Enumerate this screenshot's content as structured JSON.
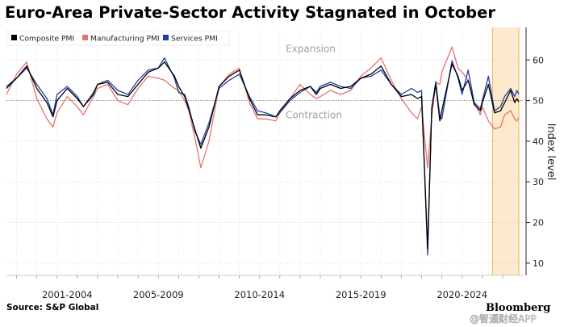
{
  "chart_data": {
    "type": "line",
    "title": "Euro-Area Private-Sector Activity Stagnated in October",
    "ylabel": "Index level",
    "ylim": [
      7,
      68
    ],
    "yticks": [
      10,
      20,
      30,
      40,
      50,
      60
    ],
    "x_range": [
      1999.5,
      2025.0
    ],
    "xtick_labels": [
      "2001-2004",
      "2005-2009",
      "2010-2014",
      "2015-2019",
      "2020-2024"
    ],
    "xtick_label_centers": [
      2002.5,
      2007.0,
      2012.0,
      2017.0,
      2022.0
    ],
    "xtick_positions": [
      2000,
      2001,
      2002,
      2003,
      2004,
      2005,
      2006,
      2007,
      2008,
      2009,
      2010,
      2011,
      2012,
      2013,
      2014,
      2015,
      2016,
      2017,
      2018,
      2019,
      2020,
      2021,
      2022,
      2023,
      2024
    ],
    "reference_line": 50,
    "annotations": [
      "Expansion",
      "Contraction"
    ],
    "shaded_region": [
      2023.5,
      2024.8
    ],
    "grid": true,
    "legend_position": "top-left",
    "source": "Source: S&P Global",
    "brand": "Bloomberg",
    "watermark": "@智通财经APP",
    "series": [
      {
        "name": "Composite PMI",
        "color": "#000000",
        "points": [
          [
            1999.5,
            53.0
          ],
          [
            2000.0,
            55.5
          ],
          [
            2000.5,
            58.5
          ],
          [
            2001.0,
            53.0
          ],
          [
            2001.5,
            49.5
          ],
          [
            2001.8,
            46.0
          ],
          [
            2002.0,
            50.0
          ],
          [
            2002.5,
            53.0
          ],
          [
            2003.0,
            50.5
          ],
          [
            2003.3,
            48.5
          ],
          [
            2003.8,
            51.5
          ],
          [
            2004.0,
            54.0
          ],
          [
            2004.5,
            54.5
          ],
          [
            2005.0,
            51.5
          ],
          [
            2005.5,
            51.0
          ],
          [
            2006.0,
            54.0
          ],
          [
            2006.5,
            57.0
          ],
          [
            2007.0,
            58.0
          ],
          [
            2007.3,
            59.5
          ],
          [
            2007.8,
            56.0
          ],
          [
            2008.0,
            53.5
          ],
          [
            2008.3,
            51.0
          ],
          [
            2008.5,
            48.0
          ],
          [
            2008.8,
            43.0
          ],
          [
            2009.1,
            38.3
          ],
          [
            2009.5,
            43.5
          ],
          [
            2010.0,
            53.5
          ],
          [
            2010.5,
            56.0
          ],
          [
            2011.0,
            57.5
          ],
          [
            2011.5,
            50.5
          ],
          [
            2011.9,
            46.5
          ],
          [
            2012.3,
            46.5
          ],
          [
            2012.8,
            46.0
          ],
          [
            2013.0,
            47.5
          ],
          [
            2013.5,
            50.5
          ],
          [
            2014.0,
            52.5
          ],
          [
            2014.5,
            53.5
          ],
          [
            2014.8,
            51.5
          ],
          [
            2015.0,
            53.0
          ],
          [
            2015.5,
            54.0
          ],
          [
            2016.0,
            53.0
          ],
          [
            2016.5,
            53.5
          ],
          [
            2017.0,
            55.5
          ],
          [
            2017.5,
            56.5
          ],
          [
            2018.0,
            58.5
          ],
          [
            2018.5,
            54.0
          ],
          [
            2019.0,
            51.0
          ],
          [
            2019.5,
            51.5
          ],
          [
            2019.8,
            50.5
          ],
          [
            2020.0,
            51.0
          ],
          [
            2020.3,
            13.6
          ],
          [
            2020.5,
            48.0
          ],
          [
            2020.7,
            54.0
          ],
          [
            2020.9,
            45.0
          ],
          [
            2021.0,
            47.5
          ],
          [
            2021.5,
            59.0
          ],
          [
            2021.8,
            56.0
          ],
          [
            2022.0,
            52.5
          ],
          [
            2022.3,
            55.0
          ],
          [
            2022.6,
            49.0
          ],
          [
            2022.9,
            47.5
          ],
          [
            2023.0,
            49.5
          ],
          [
            2023.3,
            54.0
          ],
          [
            2023.6,
            47.0
          ],
          [
            2023.9,
            47.5
          ],
          [
            2024.1,
            49.5
          ],
          [
            2024.4,
            52.5
          ],
          [
            2024.6,
            49.5
          ],
          [
            2024.7,
            50.5
          ],
          [
            2024.8,
            49.7
          ]
        ]
      },
      {
        "name": "Manufacturing PMI",
        "color": "#e8736c",
        "points": [
          [
            1999.5,
            51.5
          ],
          [
            2000.0,
            56.5
          ],
          [
            2000.5,
            59.5
          ],
          [
            2001.0,
            50.5
          ],
          [
            2001.5,
            45.5
          ],
          [
            2001.8,
            43.5
          ],
          [
            2002.0,
            47.0
          ],
          [
            2002.5,
            51.0
          ],
          [
            2003.0,
            48.5
          ],
          [
            2003.3,
            46.5
          ],
          [
            2003.8,
            51.0
          ],
          [
            2004.0,
            53.0
          ],
          [
            2004.5,
            54.0
          ],
          [
            2005.0,
            50.0
          ],
          [
            2005.5,
            49.0
          ],
          [
            2006.0,
            53.0
          ],
          [
            2006.5,
            56.0
          ],
          [
            2007.0,
            55.5
          ],
          [
            2007.3,
            55.0
          ],
          [
            2007.8,
            53.0
          ],
          [
            2008.0,
            52.5
          ],
          [
            2008.3,
            50.0
          ],
          [
            2008.5,
            47.5
          ],
          [
            2008.8,
            41.0
          ],
          [
            2009.1,
            33.5
          ],
          [
            2009.5,
            40.0
          ],
          [
            2010.0,
            53.5
          ],
          [
            2010.5,
            56.5
          ],
          [
            2011.0,
            58.0
          ],
          [
            2011.5,
            49.5
          ],
          [
            2011.9,
            45.5
          ],
          [
            2012.3,
            45.5
          ],
          [
            2012.8,
            45.0
          ],
          [
            2013.0,
            47.0
          ],
          [
            2013.5,
            50.5
          ],
          [
            2014.0,
            54.0
          ],
          [
            2014.5,
            51.5
          ],
          [
            2014.8,
            50.5
          ],
          [
            2015.0,
            51.0
          ],
          [
            2015.5,
            52.5
          ],
          [
            2016.0,
            51.5
          ],
          [
            2016.5,
            52.5
          ],
          [
            2017.0,
            56.0
          ],
          [
            2017.5,
            58.0
          ],
          [
            2018.0,
            60.5
          ],
          [
            2018.5,
            55.0
          ],
          [
            2019.0,
            50.5
          ],
          [
            2019.5,
            47.0
          ],
          [
            2019.8,
            45.5
          ],
          [
            2020.0,
            48.5
          ],
          [
            2020.3,
            33.4
          ],
          [
            2020.5,
            46.0
          ],
          [
            2020.7,
            54.5
          ],
          [
            2020.9,
            54.0
          ],
          [
            2021.0,
            57.0
          ],
          [
            2021.5,
            63.2
          ],
          [
            2021.8,
            58.0
          ],
          [
            2022.0,
            57.0
          ],
          [
            2022.3,
            55.0
          ],
          [
            2022.6,
            49.5
          ],
          [
            2022.9,
            46.5
          ],
          [
            2023.0,
            48.5
          ],
          [
            2023.3,
            45.0
          ],
          [
            2023.6,
            43.0
          ],
          [
            2023.9,
            43.5
          ],
          [
            2024.1,
            46.5
          ],
          [
            2024.4,
            47.5
          ],
          [
            2024.6,
            45.5
          ],
          [
            2024.7,
            45.0
          ],
          [
            2024.8,
            45.8
          ]
        ]
      },
      {
        "name": "Services PMI",
        "color": "#1f3fa3",
        "points": [
          [
            1999.5,
            53.5
          ],
          [
            2000.0,
            55.5
          ],
          [
            2000.5,
            58.0
          ],
          [
            2001.0,
            54.0
          ],
          [
            2001.5,
            50.5
          ],
          [
            2001.8,
            46.5
          ],
          [
            2002.0,
            51.5
          ],
          [
            2002.5,
            53.5
          ],
          [
            2003.0,
            51.0
          ],
          [
            2003.3,
            48.5
          ],
          [
            2003.8,
            52.0
          ],
          [
            2004.0,
            54.0
          ],
          [
            2004.5,
            55.0
          ],
          [
            2005.0,
            52.5
          ],
          [
            2005.5,
            51.5
          ],
          [
            2006.0,
            55.0
          ],
          [
            2006.5,
            57.5
          ],
          [
            2007.0,
            58.0
          ],
          [
            2007.3,
            60.5
          ],
          [
            2007.8,
            55.5
          ],
          [
            2008.0,
            52.0
          ],
          [
            2008.3,
            51.5
          ],
          [
            2008.5,
            48.5
          ],
          [
            2008.8,
            42.5
          ],
          [
            2009.1,
            39.2
          ],
          [
            2009.5,
            44.5
          ],
          [
            2010.0,
            53.0
          ],
          [
            2010.5,
            55.0
          ],
          [
            2011.0,
            56.5
          ],
          [
            2011.5,
            51.0
          ],
          [
            2011.9,
            47.5
          ],
          [
            2012.3,
            47.0
          ],
          [
            2012.8,
            46.0
          ],
          [
            2013.0,
            47.0
          ],
          [
            2013.5,
            50.0
          ],
          [
            2014.0,
            52.0
          ],
          [
            2014.5,
            53.5
          ],
          [
            2014.8,
            52.0
          ],
          [
            2015.0,
            53.5
          ],
          [
            2015.5,
            54.5
          ],
          [
            2016.0,
            53.5
          ],
          [
            2016.5,
            53.0
          ],
          [
            2017.0,
            55.5
          ],
          [
            2017.5,
            56.0
          ],
          [
            2018.0,
            57.5
          ],
          [
            2018.5,
            54.0
          ],
          [
            2019.0,
            51.5
          ],
          [
            2019.5,
            53.0
          ],
          [
            2019.8,
            52.0
          ],
          [
            2020.0,
            52.5
          ],
          [
            2020.3,
            12.0
          ],
          [
            2020.5,
            48.3
          ],
          [
            2020.7,
            54.7
          ],
          [
            2020.9,
            46.0
          ],
          [
            2021.0,
            45.5
          ],
          [
            2021.5,
            59.8
          ],
          [
            2021.8,
            55.5
          ],
          [
            2022.0,
            51.5
          ],
          [
            2022.3,
            57.5
          ],
          [
            2022.6,
            49.5
          ],
          [
            2022.9,
            48.0
          ],
          [
            2023.0,
            50.0
          ],
          [
            2023.3,
            56.0
          ],
          [
            2023.6,
            47.5
          ],
          [
            2023.9,
            48.5
          ],
          [
            2024.1,
            51.0
          ],
          [
            2024.4,
            53.0
          ],
          [
            2024.6,
            51.0
          ],
          [
            2024.7,
            52.5
          ],
          [
            2024.8,
            51.6
          ]
        ]
      }
    ]
  }
}
